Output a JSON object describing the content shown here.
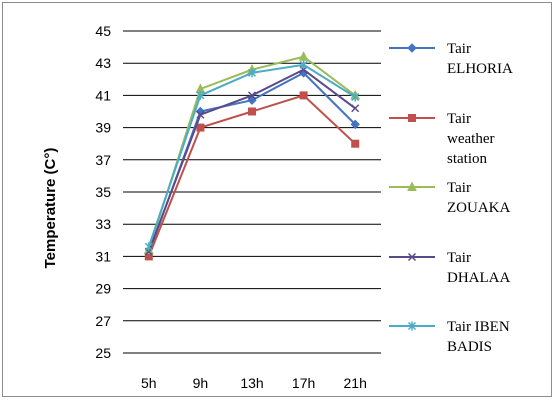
{
  "chart_data": {
    "type": "line",
    "title": "",
    "xlabel": "",
    "ylabel": "Temperature (C°)",
    "categories": [
      "5h",
      "9h",
      "13h",
      "17h",
      "21h"
    ],
    "ylim": [
      25,
      45
    ],
    "yticks": [
      "25",
      "27",
      "29",
      "31",
      "33",
      "35",
      "37",
      "39",
      "41",
      "43",
      "45"
    ],
    "grid": true,
    "legend_position": "right",
    "series": [
      {
        "name": "Tair ELHORIA",
        "legend_lines": [
          "Tair",
          "ELHORIA"
        ],
        "values": [
          31.2,
          40.0,
          40.7,
          42.4,
          39.2
        ],
        "color": "#4472c4",
        "marker": "diamond"
      },
      {
        "name": "Tair weather station",
        "legend_lines": [
          "Tair",
          "weather",
          "station"
        ],
        "values": [
          31.0,
          39.0,
          40.0,
          41.0,
          38.0
        ],
        "color": "#c0504d",
        "marker": "square"
      },
      {
        "name": "Tair ZOUAKA",
        "legend_lines": [
          "Tair",
          "ZOUAKA"
        ],
        "values": [
          31.4,
          41.4,
          42.6,
          43.4,
          41.0
        ],
        "color": "#9bbb59",
        "marker": "triangle"
      },
      {
        "name": "Tair DHALAA",
        "legend_lines": [
          "Tair",
          "DHALAA"
        ],
        "values": [
          31.3,
          39.8,
          41.0,
          42.6,
          40.2
        ],
        "color": "#5a4a8a",
        "marker": "x"
      },
      {
        "name": "Tair IBEN BADIS",
        "legend_lines": [
          "Tair IBEN",
          "BADIS"
        ],
        "values": [
          31.6,
          41.0,
          42.4,
          42.9,
          40.9
        ],
        "color": "#4bacc6",
        "marker": "star"
      }
    ]
  }
}
